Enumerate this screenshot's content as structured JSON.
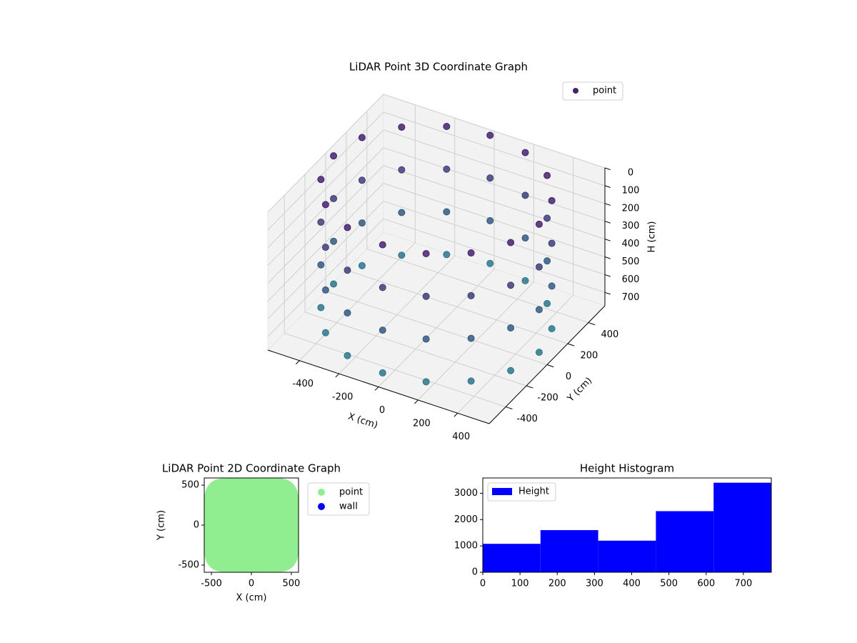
{
  "chart_data": [
    {
      "type": "scatter3d",
      "title": "LiDAR Point 3D Coordinate Graph",
      "xlabel": "X (cm)",
      "ylabel": "Y (cm)",
      "zlabel": "H (cm)",
      "xlim": [
        -560,
        560
      ],
      "ylim": [
        -560,
        560
      ],
      "zlim": [
        0,
        775
      ],
      "z_inverted": true,
      "xticks": [
        -400,
        -200,
        0,
        200,
        400
      ],
      "yticks": [
        -400,
        -200,
        0,
        200,
        400
      ],
      "zticks": [
        0,
        100,
        200,
        300,
        400,
        500,
        600,
        700
      ],
      "legend": "upper right",
      "grid": true,
      "series": [
        {
          "name": "point",
          "color": "#46226e",
          "x": [
            520,
            480,
            368,
            199,
            0,
            -199,
            -368,
            -480,
            -520,
            -480,
            -368,
            -199,
            0,
            199,
            368,
            480,
            520,
            480,
            368,
            199,
            0,
            -199,
            -368,
            -480,
            -520,
            -480,
            -368,
            -199,
            0,
            199,
            368,
            480,
            520,
            480,
            368,
            199,
            0,
            -199,
            -368,
            -480,
            -520,
            -480,
            -368,
            -199,
            0,
            199,
            368,
            480,
            520,
            480,
            368,
            199,
            0,
            -199,
            -368,
            -480,
            -520,
            -480,
            -368,
            -199,
            0,
            199,
            368,
            480
          ],
          "y": [
            0,
            199,
            368,
            480,
            520,
            480,
            368,
            199,
            0,
            -199,
            -368,
            -480,
            -520,
            -480,
            -368,
            -199,
            0,
            199,
            368,
            480,
            520,
            480,
            368,
            199,
            0,
            -199,
            -368,
            -480,
            -520,
            -480,
            -368,
            -199,
            0,
            199,
            368,
            480,
            520,
            480,
            368,
            199,
            0,
            -199,
            -368,
            -480,
            -520,
            -480,
            -368,
            -199,
            0,
            199,
            368,
            480,
            520,
            480,
            368,
            199,
            0,
            -199,
            -368,
            -480,
            -520,
            -480,
            -368,
            -199
          ],
          "z": [
            0,
            0,
            0,
            0,
            0,
            0,
            0,
            0,
            0,
            0,
            0,
            0,
            0,
            0,
            0,
            0,
            240,
            240,
            240,
            240,
            240,
            240,
            240,
            240,
            240,
            240,
            240,
            240,
            240,
            240,
            240,
            240,
            480,
            480,
            480,
            480,
            480,
            480,
            480,
            480,
            480,
            480,
            480,
            480,
            480,
            480,
            480,
            480,
            720,
            720,
            720,
            720,
            720,
            720,
            720,
            720,
            720,
            720,
            720,
            720,
            720,
            720,
            720,
            720
          ]
        }
      ]
    },
    {
      "type": "scatter",
      "title": "LiDAR Point 2D Coordinate Graph",
      "xlabel": "X (cm)",
      "ylabel": "Y (cm)",
      "xlim": [
        -590,
        590
      ],
      "ylim": [
        -590,
        590
      ],
      "xticks": [
        -500,
        0,
        500
      ],
      "yticks": [
        -500,
        0,
        500
      ],
      "legend": "outside right",
      "series": [
        {
          "name": "point",
          "color": "#90ee90",
          "x": [
            520,
            480,
            368,
            199,
            0,
            -199,
            -368,
            -480,
            -520,
            -480,
            -368,
            -199,
            0,
            199,
            368,
            480,
            300,
            212,
            0,
            -212,
            -300,
            -212,
            0,
            212,
            0
          ],
          "y": [
            0,
            199,
            368,
            480,
            520,
            480,
            368,
            199,
            0,
            -199,
            -368,
            -480,
            -520,
            -480,
            -368,
            -199,
            0,
            212,
            300,
            212,
            0,
            -212,
            -300,
            -212,
            0
          ]
        },
        {
          "name": "wall",
          "color": "#0000ff",
          "x": [],
          "y": []
        }
      ]
    },
    {
      "type": "histogram",
      "title": "Height Histogram",
      "bins": [
        0,
        155,
        310,
        465,
        620,
        775
      ],
      "values": [
        1080,
        1600,
        1200,
        2320,
        3400
      ],
      "xlim": [
        0,
        775
      ],
      "ylim": [
        0,
        3580
      ],
      "xticks": [
        0,
        100,
        200,
        300,
        400,
        500,
        600,
        700
      ],
      "yticks": [
        0,
        1000,
        2000,
        3000
      ],
      "legend": "upper left",
      "series": [
        {
          "name": "Height",
          "color": "#0000ff"
        }
      ]
    }
  ]
}
